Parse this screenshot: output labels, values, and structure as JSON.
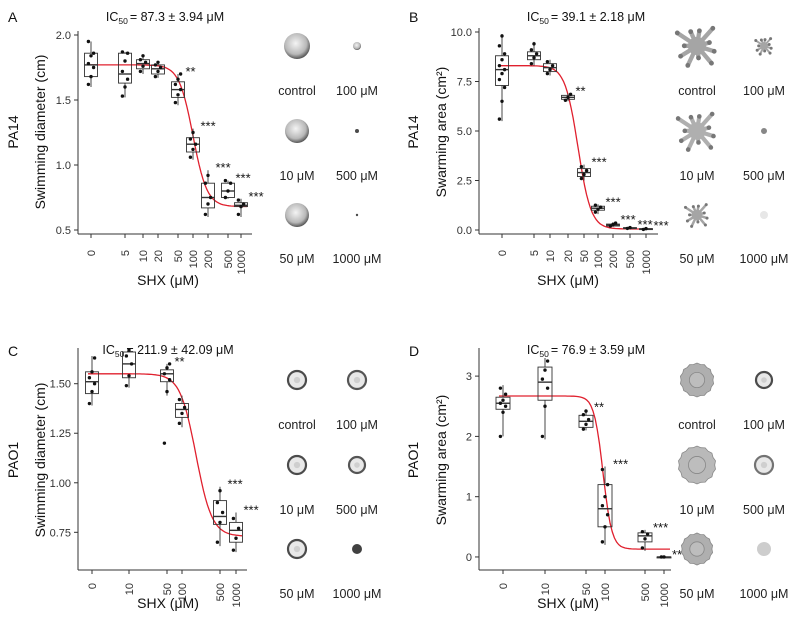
{
  "chart_data": [
    {
      "panel": "A",
      "type": "box",
      "strain": "PA14",
      "ylabel": "Swimming diameter (cm)",
      "xlabel": "SHX (μM)",
      "ic50_label": "IC",
      "ic50_sub": "50",
      "ic50_value": "= 87.3 ± 3.94 μM",
      "yticks": [
        "0.5",
        "1.0",
        "1.5",
        "2.0"
      ],
      "ylim": [
        0.5,
        2.0
      ],
      "categories": [
        "0",
        "5",
        "10",
        "20",
        "50",
        "100",
        "200",
        "500",
        "1000"
      ],
      "stats": [
        {
          "q1": 1.68,
          "med": 1.77,
          "q3": 1.86,
          "lo": 1.6,
          "hi": 1.95,
          "pts": [
            1.62,
            1.68,
            1.75,
            1.78,
            1.84,
            1.86,
            1.95
          ],
          "sig": ""
        },
        {
          "q1": 1.63,
          "med": 1.7,
          "q3": 1.86,
          "lo": 1.52,
          "hi": 1.87,
          "pts": [
            1.53,
            1.6,
            1.66,
            1.72,
            1.8,
            1.86,
            1.87
          ],
          "sig": ""
        },
        {
          "q1": 1.74,
          "med": 1.78,
          "q3": 1.81,
          "lo": 1.7,
          "hi": 1.85,
          "pts": [
            1.72,
            1.76,
            1.79,
            1.81,
            1.84
          ],
          "sig": ""
        },
        {
          "q1": 1.7,
          "med": 1.74,
          "q3": 1.77,
          "lo": 1.67,
          "hi": 1.79,
          "pts": [
            1.68,
            1.72,
            1.75,
            1.77,
            1.79
          ],
          "sig": ""
        },
        {
          "q1": 1.52,
          "med": 1.58,
          "q3": 1.64,
          "lo": 1.46,
          "hi": 1.7,
          "pts": [
            1.48,
            1.54,
            1.58,
            1.62,
            1.66,
            1.7
          ],
          "sig": "**"
        },
        {
          "q1": 1.1,
          "med": 1.16,
          "q3": 1.21,
          "lo": 1.04,
          "hi": 1.28,
          "pts": [
            1.06,
            1.12,
            1.16,
            1.2,
            1.25
          ],
          "sig": "***"
        },
        {
          "q1": 0.67,
          "med": 0.75,
          "q3": 0.86,
          "lo": 0.6,
          "hi": 0.96,
          "pts": [
            0.62,
            0.7,
            0.75,
            0.86,
            0.92
          ],
          "sig": "***"
        },
        {
          "q1": 0.75,
          "med": 0.8,
          "q3": 0.86,
          "lo": 0.74,
          "hi": 0.88,
          "pts": [
            0.75,
            0.8,
            0.86,
            0.88
          ],
          "sig": "***"
        },
        {
          "q1": 0.68,
          "med": 0.69,
          "q3": 0.71,
          "lo": 0.6,
          "hi": 0.74,
          "pts": [
            0.62,
            0.68,
            0.7,
            0.73
          ],
          "sig": "***"
        }
      ],
      "thumbs": [
        {
          "label": "control",
          "style": "swim",
          "size": 13,
          "dark": 0.55
        },
        {
          "label": "100 μM",
          "style": "swim",
          "size": 4,
          "dark": 0.6
        },
        {
          "label": "10 μM",
          "style": "swim",
          "size": 12,
          "dark": 0.55
        },
        {
          "label": "500 μM",
          "style": "dot",
          "size": 2,
          "dark": 0.9
        },
        {
          "label": "50 μM",
          "style": "swim",
          "size": 12,
          "dark": 0.5
        },
        {
          "label": "1000 μM",
          "style": "dot",
          "size": 1.2,
          "dark": 0.9
        }
      ]
    },
    {
      "panel": "B",
      "type": "box",
      "strain": "PA14",
      "ylabel": "Swarming area (cm²)",
      "xlabel": "SHX (μM)",
      "ic50_label": "IC",
      "ic50_sub": "50",
      "ic50_value": "= 39.1 ± 2.18 μM",
      "yticks": [
        "0.0",
        "2.5",
        "5.0",
        "7.5",
        "10.0"
      ],
      "ylim": [
        0,
        10
      ],
      "categories": [
        "0",
        "5",
        "10",
        "20",
        "50",
        "100",
        "200",
        "500",
        "1000"
      ],
      "stats": [
        {
          "q1": 7.3,
          "med": 8.1,
          "q3": 8.8,
          "lo": 5.5,
          "hi": 9.9,
          "pts": [
            5.6,
            6.5,
            7.2,
            7.6,
            7.9,
            8.1,
            8.3,
            8.6,
            8.9,
            9.3,
            9.8
          ],
          "sig": ""
        },
        {
          "q1": 8.6,
          "med": 8.8,
          "q3": 9.0,
          "lo": 8.3,
          "hi": 9.5,
          "pts": [
            8.4,
            8.7,
            8.9,
            9.1,
            9.4
          ],
          "sig": ""
        },
        {
          "q1": 8.0,
          "med": 8.2,
          "q3": 8.4,
          "lo": 7.8,
          "hi": 8.6,
          "pts": [
            7.9,
            8.1,
            8.3,
            8.5
          ],
          "sig": ""
        },
        {
          "q1": 6.6,
          "med": 6.7,
          "q3": 6.8,
          "lo": 6.5,
          "hi": 6.9,
          "pts": [
            6.55,
            6.7,
            6.85
          ],
          "sig": "**"
        },
        {
          "q1": 2.7,
          "med": 2.9,
          "q3": 3.1,
          "lo": 2.5,
          "hi": 3.3,
          "pts": [
            2.6,
            2.8,
            3.0,
            3.2
          ],
          "sig": "***"
        },
        {
          "q1": 1.0,
          "med": 1.1,
          "q3": 1.2,
          "lo": 0.8,
          "hi": 1.3,
          "pts": [
            0.9,
            1.05,
            1.15,
            1.25
          ],
          "sig": "***"
        },
        {
          "q1": 0.2,
          "med": 0.25,
          "q3": 0.3,
          "lo": 0.15,
          "hi": 0.4,
          "pts": [
            0.2,
            0.28,
            0.35
          ],
          "sig": "***"
        },
        {
          "q1": 0.08,
          "med": 0.1,
          "q3": 0.12,
          "lo": 0.05,
          "hi": 0.15,
          "pts": [
            0.08,
            0.12
          ],
          "sig": "***"
        },
        {
          "q1": 0.03,
          "med": 0.05,
          "q3": 0.07,
          "lo": 0.0,
          "hi": 0.1,
          "pts": [
            0.03,
            0.07
          ],
          "sig": "***"
        }
      ],
      "thumbs": [
        {
          "label": "control",
          "style": "swarm",
          "size": 24,
          "dark": 0.45
        },
        {
          "label": "100 μM",
          "style": "swarm",
          "size": 10,
          "dark": 0.45
        },
        {
          "label": "10 μM",
          "style": "swarm",
          "size": 23,
          "dark": 0.4
        },
        {
          "label": "500 μM",
          "style": "dot",
          "size": 3,
          "dark": 0.6
        },
        {
          "label": "50 μM",
          "style": "swarm",
          "size": 14,
          "dark": 0.45
        },
        {
          "label": "1000 μM",
          "style": "dot",
          "size": 4,
          "dark": 0.12
        }
      ]
    },
    {
      "panel": "C",
      "type": "box",
      "strain": "PAO1",
      "ylabel": "Swimming diameter (cm)",
      "xlabel": "SHX (μM)",
      "ic50_label": "IC",
      "ic50_sub": "50",
      "ic50_value": "= 211.9 ± 42.09 μM",
      "yticks": [
        "0.75",
        "1.00",
        "1.25",
        "1.50"
      ],
      "ylim": [
        0.58,
        1.66
      ],
      "categories": [
        "0",
        "10",
        "50",
        "100",
        "500",
        "1000"
      ],
      "stats": [
        {
          "q1": 1.45,
          "med": 1.51,
          "q3": 1.56,
          "lo": 1.39,
          "hi": 1.64,
          "pts": [
            1.4,
            1.46,
            1.5,
            1.53,
            1.56,
            1.63
          ],
          "sig": ""
        },
        {
          "q1": 1.53,
          "med": 1.6,
          "q3": 1.66,
          "lo": 1.48,
          "hi": 1.68,
          "pts": [
            1.49,
            1.54,
            1.6,
            1.64,
            1.67
          ],
          "sig": ""
        },
        {
          "q1": 1.51,
          "med": 1.55,
          "q3": 1.57,
          "lo": 1.44,
          "hi": 1.6,
          "pts": [
            1.2,
            1.46,
            1.52,
            1.55,
            1.58,
            1.6
          ],
          "sig": "**"
        },
        {
          "q1": 1.33,
          "med": 1.37,
          "q3": 1.4,
          "lo": 1.28,
          "hi": 1.44,
          "pts": [
            1.3,
            1.35,
            1.38,
            1.42
          ],
          "sig": ""
        },
        {
          "q1": 0.79,
          "med": 0.83,
          "q3": 0.91,
          "lo": 0.68,
          "hi": 0.98,
          "pts": [
            0.7,
            0.8,
            0.85,
            0.9,
            0.96
          ],
          "sig": "***"
        },
        {
          "q1": 0.7,
          "med": 0.76,
          "q3": 0.8,
          "lo": 0.65,
          "hi": 0.85,
          "pts": [
            0.66,
            0.72,
            0.77,
            0.82
          ],
          "sig": "***"
        }
      ],
      "thumbs": [
        {
          "label": "control",
          "style": "ring",
          "size": 9,
          "dark": 0.9
        },
        {
          "label": "100 μM",
          "style": "ring",
          "size": 9,
          "dark": 0.85
        },
        {
          "label": "10 μM",
          "style": "ring",
          "size": 9,
          "dark": 0.9
        },
        {
          "label": "500 μM",
          "style": "ring",
          "size": 8,
          "dark": 0.85
        },
        {
          "label": "50 μM",
          "style": "ring",
          "size": 9,
          "dark": 0.9
        },
        {
          "label": "1000 μM",
          "style": "dot",
          "size": 5,
          "dark": 0.95
        }
      ]
    },
    {
      "panel": "D",
      "type": "box",
      "strain": "PAO1",
      "ylabel": "Swarming area (cm²)",
      "xlabel": "SHX (μM)",
      "ic50_label": "IC",
      "ic50_sub": "50",
      "ic50_value": "= 76.9 ± 3.59 μM",
      "yticks": [
        "0",
        "1",
        "2",
        "3"
      ],
      "ylim": [
        -0.15,
        3.4
      ],
      "categories": [
        "0",
        "10",
        "50",
        "100",
        "500",
        "1000"
      ],
      "stats": [
        {
          "q1": 2.45,
          "med": 2.55,
          "q3": 2.65,
          "lo": 2.0,
          "hi": 2.85,
          "pts": [
            2.0,
            2.4,
            2.5,
            2.55,
            2.6,
            2.7,
            2.8
          ],
          "sig": ""
        },
        {
          "q1": 2.6,
          "med": 2.9,
          "q3": 3.15,
          "lo": 1.95,
          "hi": 3.3,
          "pts": [
            2.0,
            2.5,
            2.8,
            2.95,
            3.1,
            3.25
          ],
          "sig": ""
        },
        {
          "q1": 2.15,
          "med": 2.25,
          "q3": 2.35,
          "lo": 2.1,
          "hi": 2.45,
          "pts": [
            2.12,
            2.2,
            2.28,
            2.36,
            2.42
          ],
          "sig": "**"
        },
        {
          "q1": 0.5,
          "med": 0.8,
          "q3": 1.2,
          "lo": 0.2,
          "hi": 1.5,
          "pts": [
            0.25,
            0.5,
            0.7,
            0.85,
            1.0,
            1.2,
            1.45
          ],
          "sig": "***"
        },
        {
          "q1": 0.25,
          "med": 0.35,
          "q3": 0.4,
          "lo": 0.1,
          "hi": 0.45,
          "pts": [
            0.15,
            0.3,
            0.38,
            0.42
          ],
          "sig": "***"
        },
        {
          "q1": 0.0,
          "med": 0.0,
          "q3": 0.0,
          "lo": 0.0,
          "hi": 0.0,
          "pts": [
            0.0,
            0.0
          ],
          "sig": "***"
        }
      ],
      "thumbs": [
        {
          "label": "control",
          "style": "swarm2",
          "size": 17,
          "dark": 0.4
        },
        {
          "label": "100 μM",
          "style": "ring",
          "size": 8,
          "dark": 0.9
        },
        {
          "label": "10 μM",
          "style": "swarm2",
          "size": 19,
          "dark": 0.35
        },
        {
          "label": "500 μM",
          "style": "ring",
          "size": 9,
          "dark": 0.7
        },
        {
          "label": "50 μM",
          "style": "swarm2",
          "size": 16,
          "dark": 0.4
        },
        {
          "label": "1000 μM",
          "style": "dot",
          "size": 7,
          "dark": 0.25
        }
      ]
    }
  ],
  "colors": {
    "curve": "#e0202e",
    "box": "#333333",
    "point": "#111111"
  }
}
